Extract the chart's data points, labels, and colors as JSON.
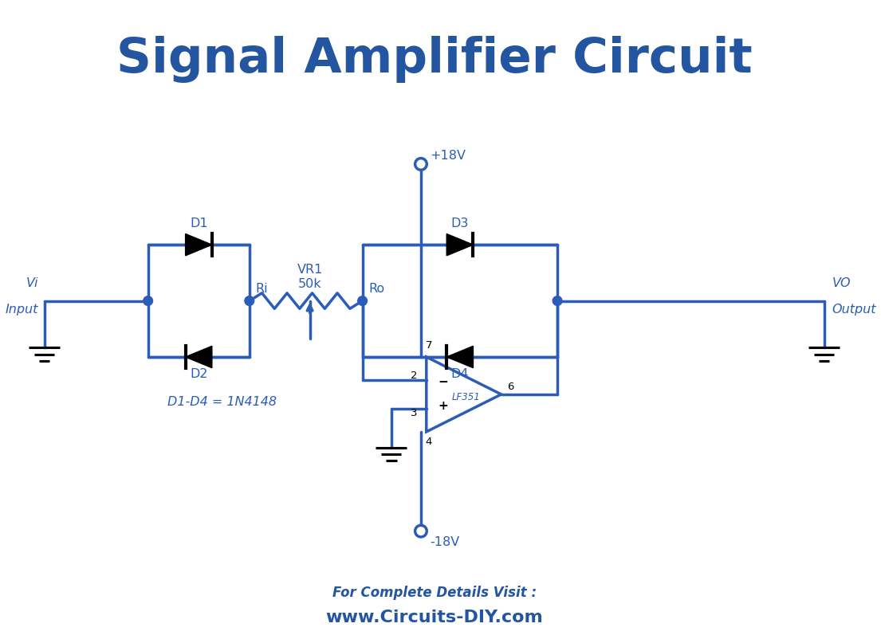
{
  "title": "Signal Amplifier Circuit",
  "title_color": "#2355A0",
  "title_fontsize": 44,
  "title_fontweight": "bold",
  "circuit_color": "#2B5CB8",
  "line_width": 2.5,
  "bg_color": "#FFFFFF",
  "footer_text1": "For Complete Details Visit :",
  "footer_text2": "www.Circuits-DIY.com",
  "footer_color": "#2355A0",
  "diode_note": "D1-D4 = 1N4148",
  "label_d1": "D1",
  "label_d2": "D2",
  "label_d3": "D3",
  "label_d4": "D4",
  "label_ri": "Ri",
  "label_ro": "Ro",
  "label_vr1a": "VR1",
  "label_vr1b": "50k",
  "label_vplus": "+18V",
  "label_vminus": "-18V",
  "label_opamp": "LF351",
  "label_vi1": "Vi",
  "label_vi2": "Input",
  "label_vo1": "VO",
  "label_vo2": "Output",
  "label_p2": "2",
  "label_p3": "3",
  "label_p4": "4",
  "label_p6": "6",
  "label_p7": "7"
}
